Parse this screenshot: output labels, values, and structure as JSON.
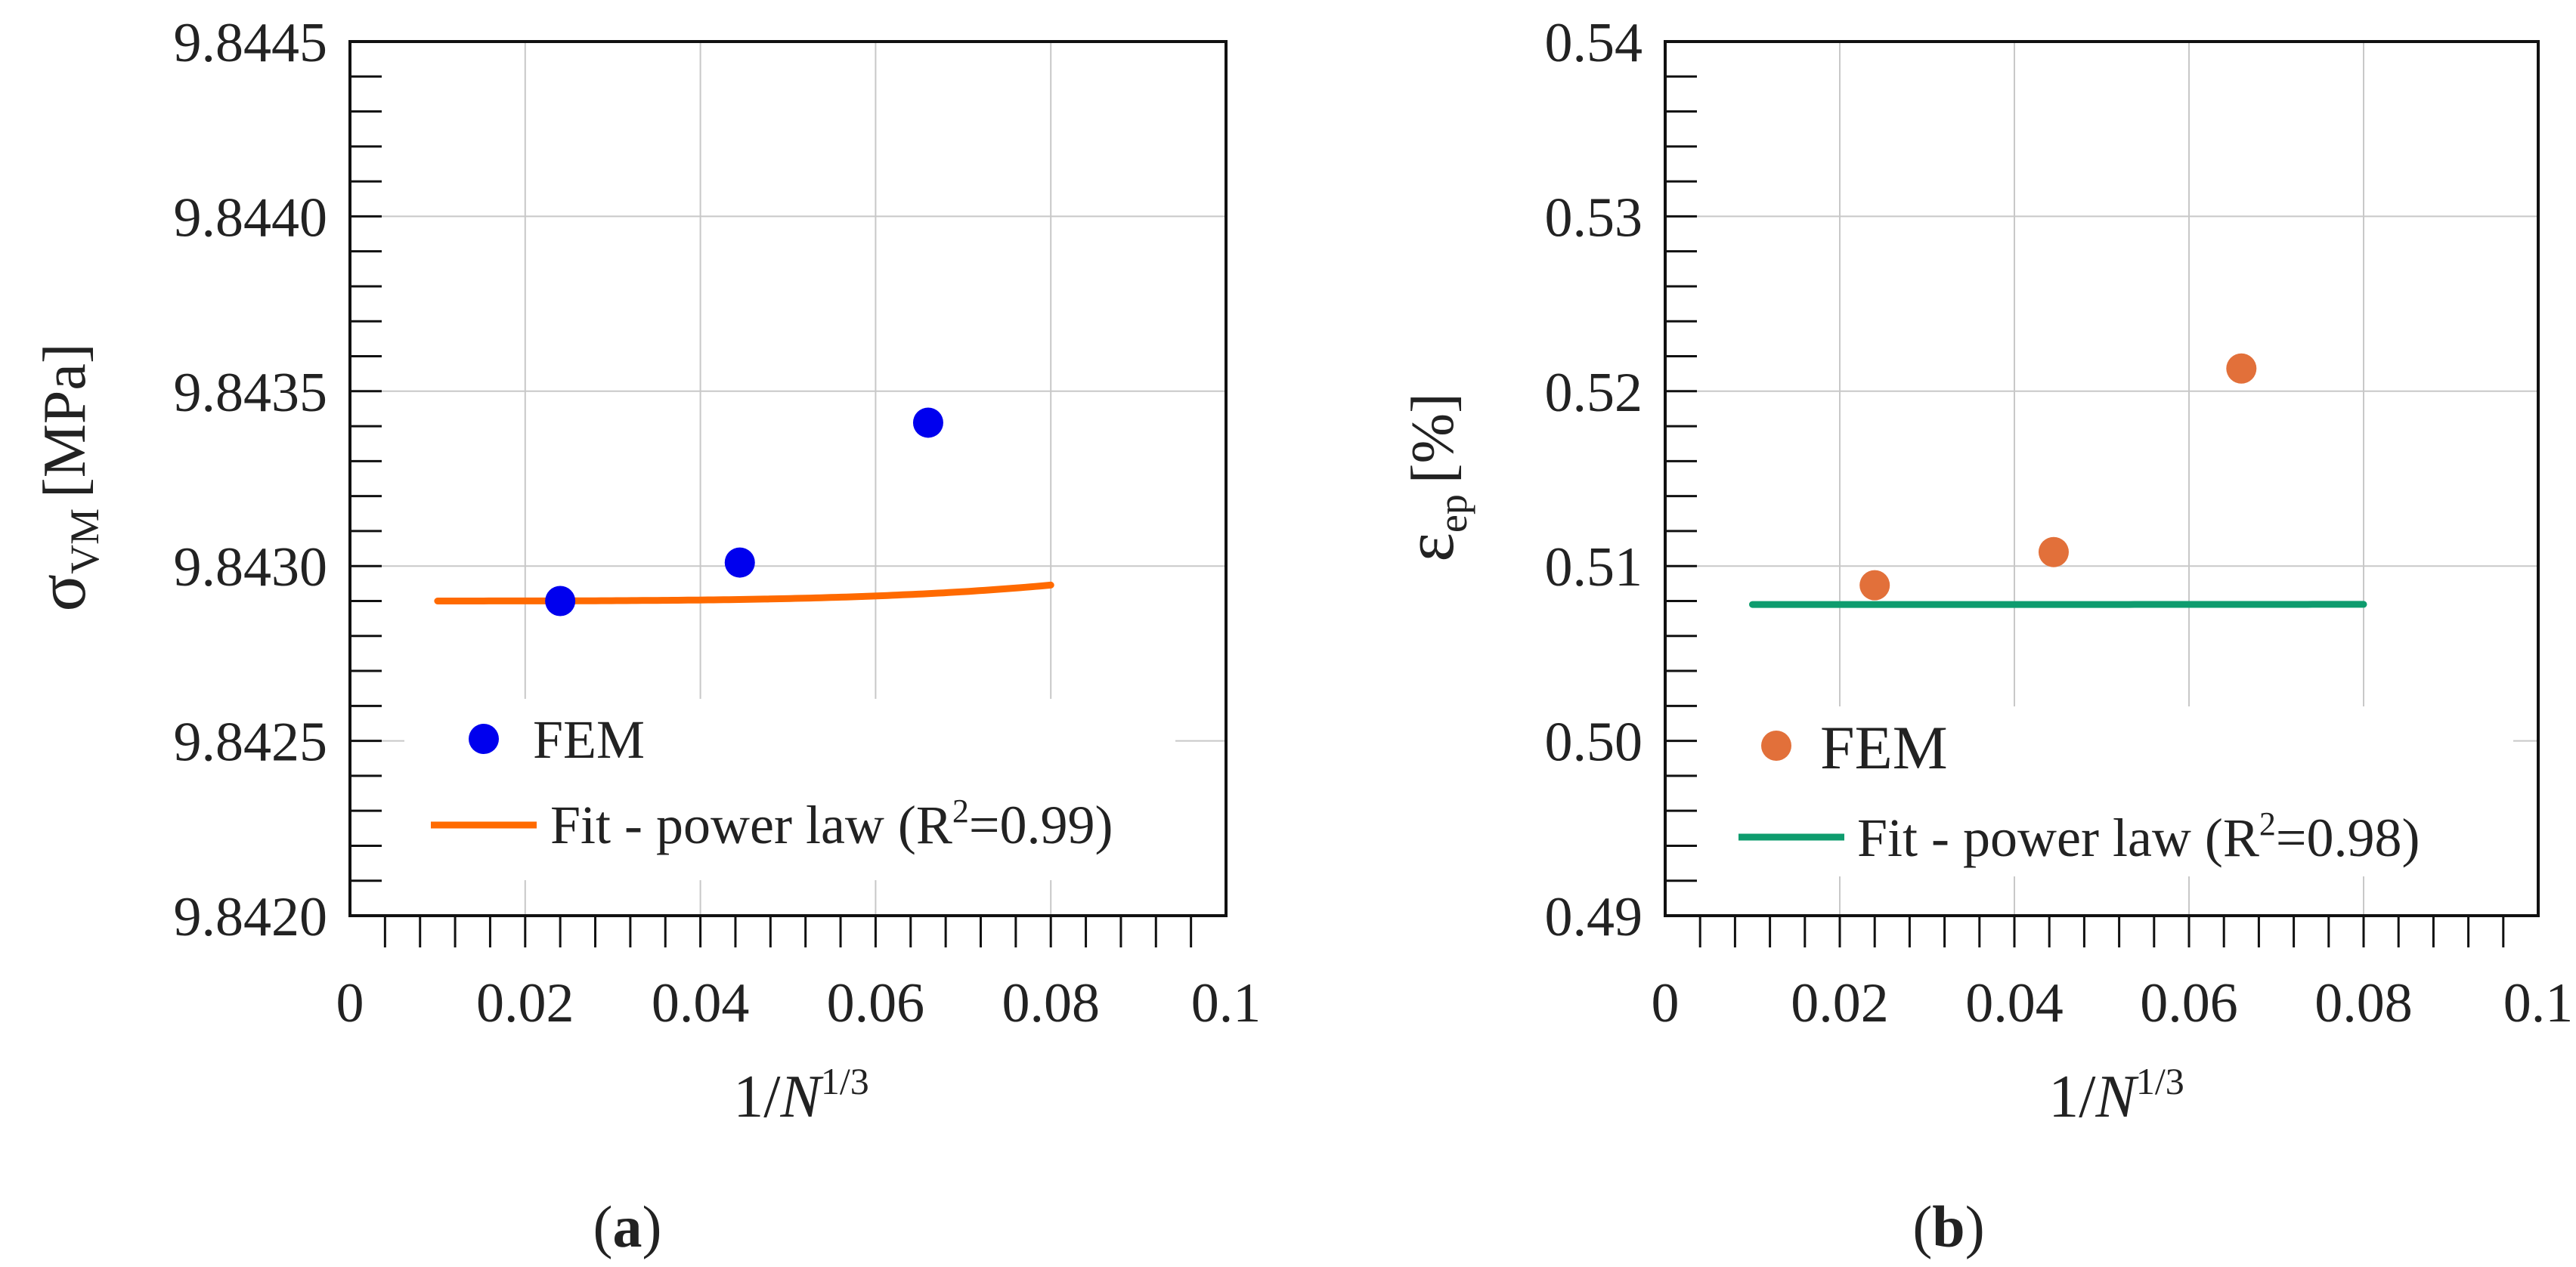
{
  "chart_data": [
    {
      "type": "scatter",
      "panel_label": "a",
      "xlabel": "1/N^(1/3)",
      "ylabel": "σVM [MPa]",
      "ylabel_symbol": "σ",
      "ylabel_subscript": "VM",
      "ylabel_unit": "[MPa]",
      "xlim": [
        0,
        0.1
      ],
      "ylim": [
        9.842,
        9.8445
      ],
      "grid": true,
      "x_ticks": [
        "0",
        "0.02",
        "0.04",
        "0.06",
        "0.08",
        "0.1"
      ],
      "y_ticks": [
        "9.8420",
        "9.8425",
        "9.8430",
        "9.8435",
        "9.8440",
        "9.8445"
      ],
      "legend_position": "lower-center",
      "series": [
        {
          "name": "FEM",
          "kind": "points",
          "color": "#0000EE",
          "x": [
            0.024,
            0.0445,
            0.066
          ],
          "y": [
            9.8429,
            9.84301,
            9.84341
          ]
        },
        {
          "name": "Fit - power law (R2=0.99)",
          "kind": "line",
          "color": "#FF6A00",
          "x_range": [
            0.01,
            0.08
          ],
          "model": {
            "a": 9.8429,
            "b": 1.11,
            "c": 4
          },
          "r_squared": "0.99"
        }
      ]
    },
    {
      "type": "scatter",
      "panel_label": "b",
      "xlabel": "1/N^(1/3)",
      "ylabel": "εep [%]",
      "ylabel_symbol": "ε",
      "ylabel_subscript": "ep",
      "ylabel_unit": "[%]",
      "xlim": [
        0,
        0.1
      ],
      "ylim": [
        0.49,
        0.54
      ],
      "grid": true,
      "x_ticks": [
        "0",
        "0.02",
        "0.04",
        "0.06",
        "0.08",
        "0.1"
      ],
      "y_ticks": [
        "0.49",
        "0.50",
        "0.51",
        "0.52",
        "0.53",
        "0.54"
      ],
      "legend_position": "lower-center",
      "series": [
        {
          "name": "FEM",
          "kind": "points",
          "color": "#E2703A",
          "x": [
            0.024,
            0.0445,
            0.066
          ],
          "y": [
            0.5089,
            0.5108,
            0.5213
          ]
        },
        {
          "name": "Fit - power law (R2=0.98)",
          "kind": "line",
          "color": "#0E9C6E",
          "x_range": [
            0.01,
            0.08
          ],
          "model": {
            "a": 0.5078,
            "b": 0.0245,
            "c": 3.14
          },
          "r_squared": "0.98"
        }
      ]
    }
  ],
  "labels": {
    "x_axis_prefix": "1/",
    "x_axis_var": "N",
    "x_axis_exp": "1/3",
    "legend_fem": "FEM",
    "legend_fit_text": "Fit - power law (R",
    "legend_fit_sup": "2",
    "caption_a": "a",
    "caption_b": "b",
    "paren_open": "(",
    "paren_close": ")"
  }
}
